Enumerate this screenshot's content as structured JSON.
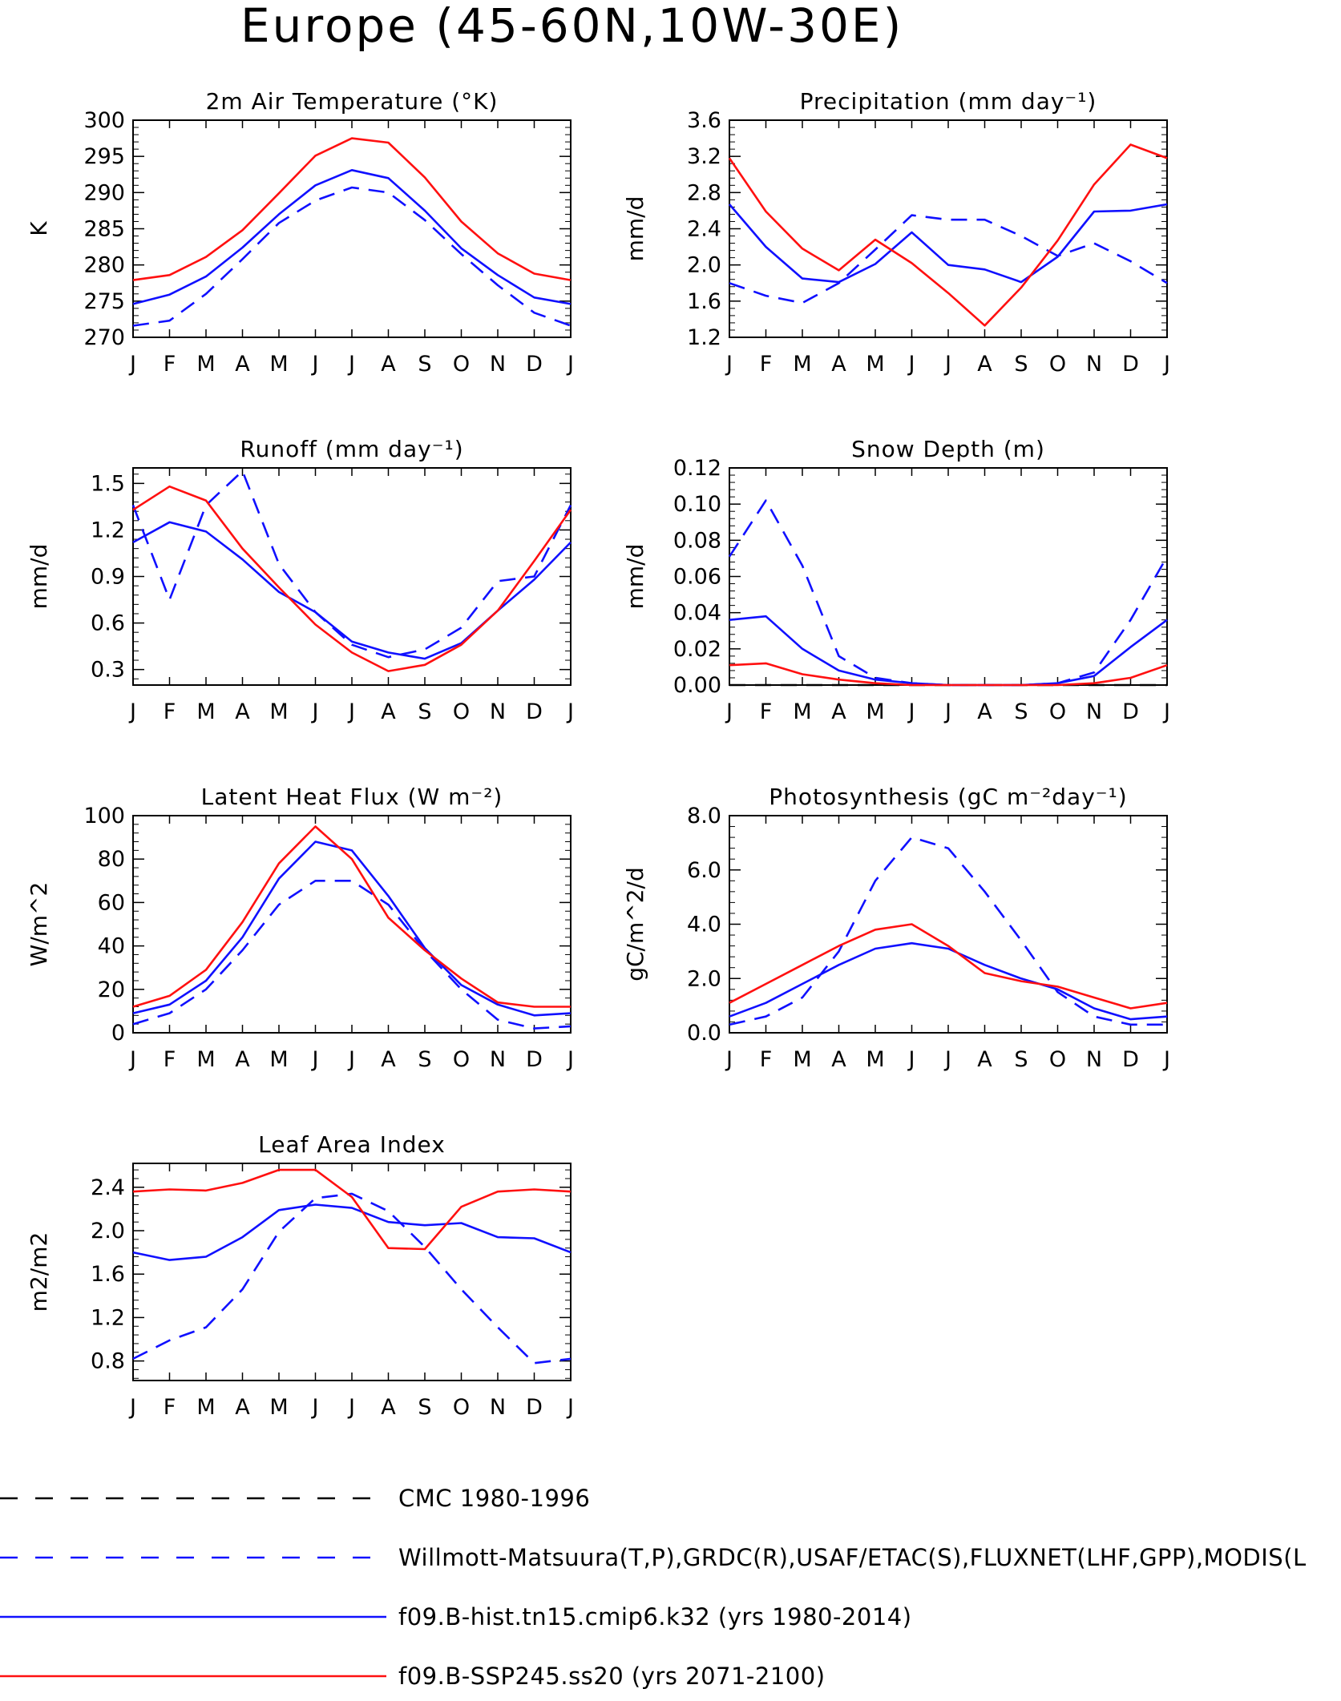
{
  "title": "Europe (45-60N,10W-30E)",
  "months": [
    "J",
    "F",
    "M",
    "A",
    "M",
    "J",
    "J",
    "A",
    "S",
    "O",
    "N",
    "D",
    "J"
  ],
  "colors": {
    "obs": "#1010ff",
    "hist": "#1010ff",
    "ssp": "#ff1010",
    "cmc": "#000000"
  },
  "legend": [
    {
      "key": "cmc",
      "label": "CMC 1980-1996",
      "color": "#000000",
      "dashed": true
    },
    {
      "key": "obs",
      "label": "Willmott-Matsuura(T,P),GRDC(R),USAF/ETAC(S),FLUXNET(LHF,GPP),MODIS(L",
      "color": "#1010ff",
      "dashed": true
    },
    {
      "key": "hist",
      "label": "f09.B-hist.tn15.cmip6.k32 (yrs 1980-2014)",
      "color": "#1010ff",
      "dashed": false
    },
    {
      "key": "ssp",
      "label": "f09.B-SSP245.ss20 (yrs 2071-2100)",
      "color": "#ff1010",
      "dashed": false
    }
  ],
  "chart_data": [
    {
      "type": "line",
      "title": "2m Air Temperature (°K)",
      "ylabel": "K",
      "x": [
        "J",
        "F",
        "M",
        "A",
        "M",
        "J",
        "J",
        "A",
        "S",
        "O",
        "N",
        "D",
        "J"
      ],
      "ylim": [
        270,
        300
      ],
      "yticks": [
        270,
        275,
        280,
        285,
        290,
        295,
        300
      ],
      "ytick_labels": [
        "270",
        "275",
        "280",
        "285",
        "290",
        "295",
        "300"
      ],
      "series": [
        {
          "name": "Willmott-Matsuura(T,P),GRDC(R),USAF/ETAC(S),FLUXNET(LHF,GPP),MODIS(L",
          "style": "dashed",
          "color": "#1010ff",
          "values": [
            271.6,
            272.3,
            276.0,
            280.8,
            285.8,
            288.9,
            290.7,
            290.0,
            286.2,
            281.5,
            277.2,
            273.4,
            271.6
          ]
        },
        {
          "name": "f09.B-hist.tn15.cmip6.k32 (yrs 1980-2014)",
          "style": "solid",
          "color": "#1010ff",
          "values": [
            274.6,
            275.9,
            278.4,
            282.4,
            287.0,
            291.0,
            293.1,
            292.0,
            287.5,
            282.3,
            278.6,
            275.5,
            274.6
          ]
        },
        {
          "name": "f09.B-SSP245.ss20 (yrs 2071-2100)",
          "style": "solid",
          "color": "#ff1010",
          "values": [
            277.9,
            278.6,
            281.1,
            284.8,
            289.9,
            295.1,
            297.5,
            296.9,
            292.1,
            286.0,
            281.6,
            278.8,
            277.9
          ]
        }
      ]
    },
    {
      "type": "line",
      "title": "Precipitation (mm day⁻¹)",
      "ylabel": "mm/d",
      "x": [
        "J",
        "F",
        "M",
        "A",
        "M",
        "J",
        "J",
        "A",
        "S",
        "O",
        "N",
        "D",
        "J"
      ],
      "ylim": [
        1.2,
        3.6
      ],
      "yticks": [
        1.2,
        1.6,
        2.0,
        2.4,
        2.8,
        3.2,
        3.6
      ],
      "ytick_labels": [
        "1.2",
        "1.6",
        "2.0",
        "2.4",
        "2.8",
        "3.2",
        "3.6"
      ],
      "series": [
        {
          "name": "Willmott-Matsuura(T,P),GRDC(R),USAF/ETAC(S),FLUXNET(LHF,GPP),MODIS(L",
          "style": "dashed",
          "color": "#1010ff",
          "values": [
            1.8,
            1.66,
            1.58,
            1.8,
            2.17,
            2.55,
            2.5,
            2.5,
            2.32,
            2.1,
            2.24,
            2.04,
            1.8
          ]
        },
        {
          "name": "f09.B-hist.tn15.cmip6.k32 (yrs 1980-2014)",
          "style": "solid",
          "color": "#1010ff",
          "values": [
            2.67,
            2.2,
            1.85,
            1.81,
            2.01,
            2.36,
            2.0,
            1.95,
            1.81,
            2.09,
            2.59,
            2.6,
            2.67
          ]
        },
        {
          "name": "f09.B-SSP245.ss20 (yrs 2071-2100)",
          "style": "solid",
          "color": "#ff1010",
          "values": [
            3.18,
            2.59,
            2.18,
            1.94,
            2.28,
            2.02,
            1.69,
            1.33,
            1.75,
            2.27,
            2.89,
            3.33,
            3.18
          ]
        }
      ]
    },
    {
      "type": "line",
      "title": "Runoff (mm day⁻¹)",
      "ylabel": "mm/d",
      "x": [
        "J",
        "F",
        "M",
        "A",
        "M",
        "J",
        "J",
        "A",
        "S",
        "O",
        "N",
        "D",
        "J"
      ],
      "ylim": [
        0.2,
        1.6
      ],
      "yticks": [
        0.3,
        0.6,
        0.9,
        1.2,
        1.5
      ],
      "ytick_labels": [
        "0.3",
        "0.6",
        "0.9",
        "1.2",
        "1.5"
      ],
      "series": [
        {
          "name": "Willmott-Matsuura(T,P),GRDC(R),USAF/ETAC(S),FLUXNET(LHF,GPP),MODIS(L",
          "style": "dashed",
          "color": "#1010ff",
          "values": [
            1.36,
            0.75,
            1.36,
            1.58,
            0.98,
            0.67,
            0.46,
            0.38,
            0.43,
            0.57,
            0.87,
            0.9,
            1.36
          ]
        },
        {
          "name": "f09.B-hist.tn15.cmip6.k32 (yrs 1980-2014)",
          "style": "solid",
          "color": "#1010ff",
          "values": [
            1.12,
            1.25,
            1.19,
            1.01,
            0.8,
            0.67,
            0.48,
            0.41,
            0.37,
            0.47,
            0.68,
            0.88,
            1.12
          ]
        },
        {
          "name": "f09.B-SSP245.ss20 (yrs 2071-2100)",
          "style": "solid",
          "color": "#ff1010",
          "values": [
            1.33,
            1.48,
            1.39,
            1.08,
            0.83,
            0.59,
            0.41,
            0.29,
            0.33,
            0.46,
            0.68,
            1.0,
            1.33
          ]
        }
      ]
    },
    {
      "type": "line",
      "title": "Snow Depth (m)",
      "ylabel": "mm/d",
      "x": [
        "J",
        "F",
        "M",
        "A",
        "M",
        "J",
        "J",
        "A",
        "S",
        "O",
        "N",
        "D",
        "J"
      ],
      "ylim": [
        0,
        0.12
      ],
      "yticks": [
        0,
        0.02,
        0.04,
        0.06,
        0.08,
        0.1,
        0.12
      ],
      "ytick_labels": [
        "0.00",
        "0.02",
        "0.04",
        "0.06",
        "0.08",
        "0.10",
        "0.12"
      ],
      "series": [
        {
          "name": "CMC 1980-1996",
          "style": "dashed",
          "color": "#000000",
          "values": [
            0,
            0,
            0,
            0,
            0,
            0,
            0,
            0,
            0,
            0,
            0,
            0,
            0
          ]
        },
        {
          "name": "Willmott-Matsuura(T,P),GRDC(R),USAF/ETAC(S),FLUXNET(LHF,GPP),MODIS(L",
          "style": "dashed",
          "color": "#1010ff",
          "values": [
            0.071,
            0.102,
            0.066,
            0.016,
            0.004,
            0.001,
            0.0,
            0.0,
            0.0,
            0.001,
            0.007,
            0.036,
            0.071
          ]
        },
        {
          "name": "f09.B-hist.tn15.cmip6.k32 (yrs 1980-2014)",
          "style": "solid",
          "color": "#1010ff",
          "values": [
            0.036,
            0.038,
            0.02,
            0.008,
            0.003,
            0.001,
            0.0,
            0.0,
            0.0,
            0.001,
            0.005,
            0.021,
            0.036
          ]
        },
        {
          "name": "f09.B-SSP245.ss20 (yrs 2071-2100)",
          "style": "solid",
          "color": "#ff1010",
          "values": [
            0.011,
            0.012,
            0.006,
            0.003,
            0.001,
            0.0,
            0.0,
            0.0,
            0.0,
            0.0,
            0.001,
            0.004,
            0.011
          ]
        }
      ]
    },
    {
      "type": "line",
      "title": "Latent Heat Flux (W m⁻²)",
      "ylabel": "W/m^2",
      "x": [
        "J",
        "F",
        "M",
        "A",
        "M",
        "J",
        "J",
        "A",
        "S",
        "O",
        "N",
        "D",
        "J"
      ],
      "ylim": [
        0,
        100
      ],
      "yticks": [
        0,
        20,
        40,
        60,
        80,
        100
      ],
      "ytick_labels": [
        "0",
        "20",
        "40",
        "60",
        "80",
        "100"
      ],
      "series": [
        {
          "name": "Willmott-Matsuura(T,P),GRDC(R),USAF/ETAC(S),FLUXNET(LHF,GPP),MODIS(L",
          "style": "dashed",
          "color": "#1010ff",
          "values": [
            4,
            9,
            20,
            38,
            59,
            70,
            70,
            59,
            38,
            20,
            6,
            2,
            3
          ]
        },
        {
          "name": "f09.B-hist.tn15.cmip6.k32 (yrs 1980-2014)",
          "style": "solid",
          "color": "#1010ff",
          "values": [
            9,
            13,
            24,
            44,
            71,
            88,
            84,
            63,
            39,
            22,
            13,
            8,
            9
          ]
        },
        {
          "name": "f09.B-SSP245.ss20 (yrs 2071-2100)",
          "style": "solid",
          "color": "#ff1010",
          "values": [
            12,
            17,
            29,
            51,
            78,
            95,
            80,
            53,
            38,
            25,
            14,
            12,
            12
          ]
        }
      ]
    },
    {
      "type": "line",
      "title": "Photosynthesis (gC m⁻²day⁻¹)",
      "ylabel": "gC/m^2/d",
      "x": [
        "J",
        "F",
        "M",
        "A",
        "M",
        "J",
        "J",
        "A",
        "S",
        "O",
        "N",
        "D",
        "J"
      ],
      "ylim": [
        0,
        8
      ],
      "yticks": [
        0,
        2,
        4,
        6,
        8
      ],
      "ytick_labels": [
        "0.0",
        "2.0",
        "4.0",
        "6.0",
        "8.0"
      ],
      "series": [
        {
          "name": "Willmott-Matsuura(T,P),GRDC(R),USAF/ETAC(S),FLUXNET(LHF,GPP),MODIS(L",
          "style": "dashed",
          "color": "#1010ff",
          "values": [
            0.3,
            0.6,
            1.3,
            3.0,
            5.6,
            7.2,
            6.8,
            5.2,
            3.4,
            1.5,
            0.6,
            0.3,
            0.3
          ]
        },
        {
          "name": "f09.B-hist.tn15.cmip6.k32 (yrs 1980-2014)",
          "style": "solid",
          "color": "#1010ff",
          "values": [
            0.6,
            1.1,
            1.8,
            2.5,
            3.1,
            3.3,
            3.1,
            2.5,
            2.0,
            1.6,
            0.9,
            0.5,
            0.6
          ]
        },
        {
          "name": "f09.B-SSP245.ss20 (yrs 2071-2100)",
          "style": "solid",
          "color": "#ff1010",
          "values": [
            1.1,
            1.8,
            2.5,
            3.2,
            3.8,
            4.0,
            3.2,
            2.2,
            1.9,
            1.7,
            1.3,
            0.9,
            1.1
          ]
        }
      ]
    },
    {
      "type": "line",
      "title": "Leaf Area Index",
      "ylabel": "m2/m2",
      "x": [
        "J",
        "F",
        "M",
        "A",
        "M",
        "J",
        "J",
        "A",
        "S",
        "O",
        "N",
        "D",
        "J"
      ],
      "ylim": [
        0.62,
        2.62
      ],
      "yticks": [
        0.8,
        1.2,
        1.6,
        2.0,
        2.4
      ],
      "ytick_labels": [
        "0.8",
        "1.2",
        "1.6",
        "2.0",
        "2.4"
      ],
      "series": [
        {
          "name": "Willmott-Matsuura(T,P),GRDC(R),USAF/ETAC(S),FLUXNET(LHF,GPP),MODIS(L",
          "style": "dashed",
          "color": "#1010ff",
          "values": [
            0.82,
            0.99,
            1.11,
            1.46,
            1.99,
            2.3,
            2.34,
            2.18,
            1.85,
            1.46,
            1.11,
            0.78,
            0.82
          ]
        },
        {
          "name": "f09.B-hist.tn15.cmip6.k32 (yrs 1980-2014)",
          "style": "solid",
          "color": "#1010ff",
          "values": [
            1.8,
            1.73,
            1.76,
            1.94,
            2.19,
            2.24,
            2.21,
            2.08,
            2.05,
            2.07,
            1.94,
            1.93,
            1.8
          ]
        },
        {
          "name": "f09.B-SSP245.ss20 (yrs 2071-2100)",
          "style": "solid",
          "color": "#ff1010",
          "values": [
            2.36,
            2.38,
            2.37,
            2.44,
            2.56,
            2.56,
            2.31,
            1.84,
            1.83,
            2.22,
            2.36,
            2.38,
            2.36
          ]
        }
      ]
    }
  ]
}
